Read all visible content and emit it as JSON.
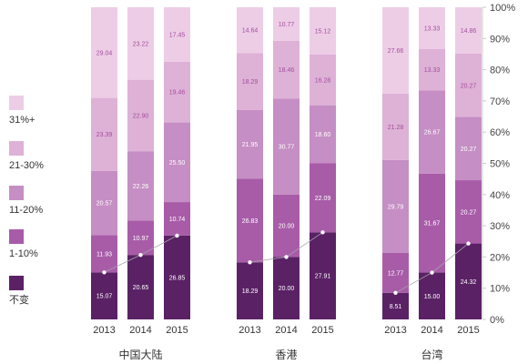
{
  "chart_data": {
    "type": "bar",
    "stacked": true,
    "percent": true,
    "title": "",
    "xlabel": "",
    "ylabel": "",
    "ylim": [
      0,
      100
    ],
    "yticks": [
      "0%",
      "10%",
      "20%",
      "30%",
      "40%",
      "50%",
      "60%",
      "70%",
      "80%",
      "90%",
      "100%"
    ],
    "grid": false,
    "legend_position": "left",
    "legend": [
      {
        "name": "31%+",
        "color": "#edcde6"
      },
      {
        "name": "21-30%",
        "color": "#deb1d7"
      },
      {
        "name": "11-20%",
        "color": "#c58ec4"
      },
      {
        "name": "1-10%",
        "color": "#a85ca8"
      },
      {
        "name": "不变",
        "color": "#5a2165"
      }
    ],
    "groups": [
      {
        "name": "中国大陆",
        "years": [
          "2013",
          "2014",
          "2015"
        ]
      },
      {
        "name": "香港",
        "years": [
          "2013",
          "2014",
          "2015"
        ]
      },
      {
        "name": "台湾",
        "years": [
          "2013",
          "2014",
          "2015"
        ]
      }
    ],
    "series": [
      {
        "name": "不变",
        "color": "#5a2165",
        "label_color": "#ffffff",
        "values": [
          15.07,
          20.65,
          26.85,
          18.29,
          20.0,
          27.91,
          8.51,
          15.0,
          24.32
        ],
        "labels": [
          "15.07",
          "20.65",
          "26.85",
          "18.29",
          "20.00",
          "27.91",
          "8.51",
          "15.00",
          "24.32"
        ]
      },
      {
        "name": "1-10%",
        "color": "#a85ca8",
        "label_color": "#ffffff",
        "values": [
          11.93,
          10.97,
          10.74,
          26.83,
          20.0,
          22.09,
          12.77,
          31.67,
          20.27
        ],
        "labels": [
          "11.93",
          "10.97",
          "10.74",
          "26.83",
          "20.00",
          "22.09",
          "12.77",
          "31.67",
          "20.27"
        ]
      },
      {
        "name": "11-20%",
        "color": "#c58ec4",
        "label_color": "#ffffff",
        "values": [
          20.57,
          22.26,
          25.5,
          21.95,
          30.77,
          18.6,
          29.79,
          26.67,
          20.27
        ],
        "labels": [
          "20.57",
          "22.26",
          "25.50",
          "21.95",
          "30.77",
          "18.60",
          "29.79",
          "26.67",
          "20.27"
        ]
      },
      {
        "name": "21-30%",
        "color": "#deb1d7",
        "label_color": "#a24f9b",
        "values": [
          23.39,
          22.9,
          19.46,
          18.29,
          18.46,
          16.28,
          21.28,
          13.33,
          20.27
        ],
        "labels": [
          "23.39",
          "22.90",
          "19.46",
          "18.29",
          "18.46",
          "16.28",
          "21.28",
          "13.33",
          "20.27"
        ]
      },
      {
        "name": "31%+",
        "color": "#edcde6",
        "label_color": "#a24f9b",
        "values": [
          29.04,
          23.22,
          17.45,
          14.64,
          10.77,
          15.12,
          27.66,
          13.33,
          14.86
        ],
        "labels": [
          "29.04",
          "23.22",
          "17.45",
          "14.64",
          "10.77",
          "15.12",
          "27.66",
          "13.33",
          "14.86"
        ]
      }
    ],
    "trend_color": "#a6a3ab"
  }
}
